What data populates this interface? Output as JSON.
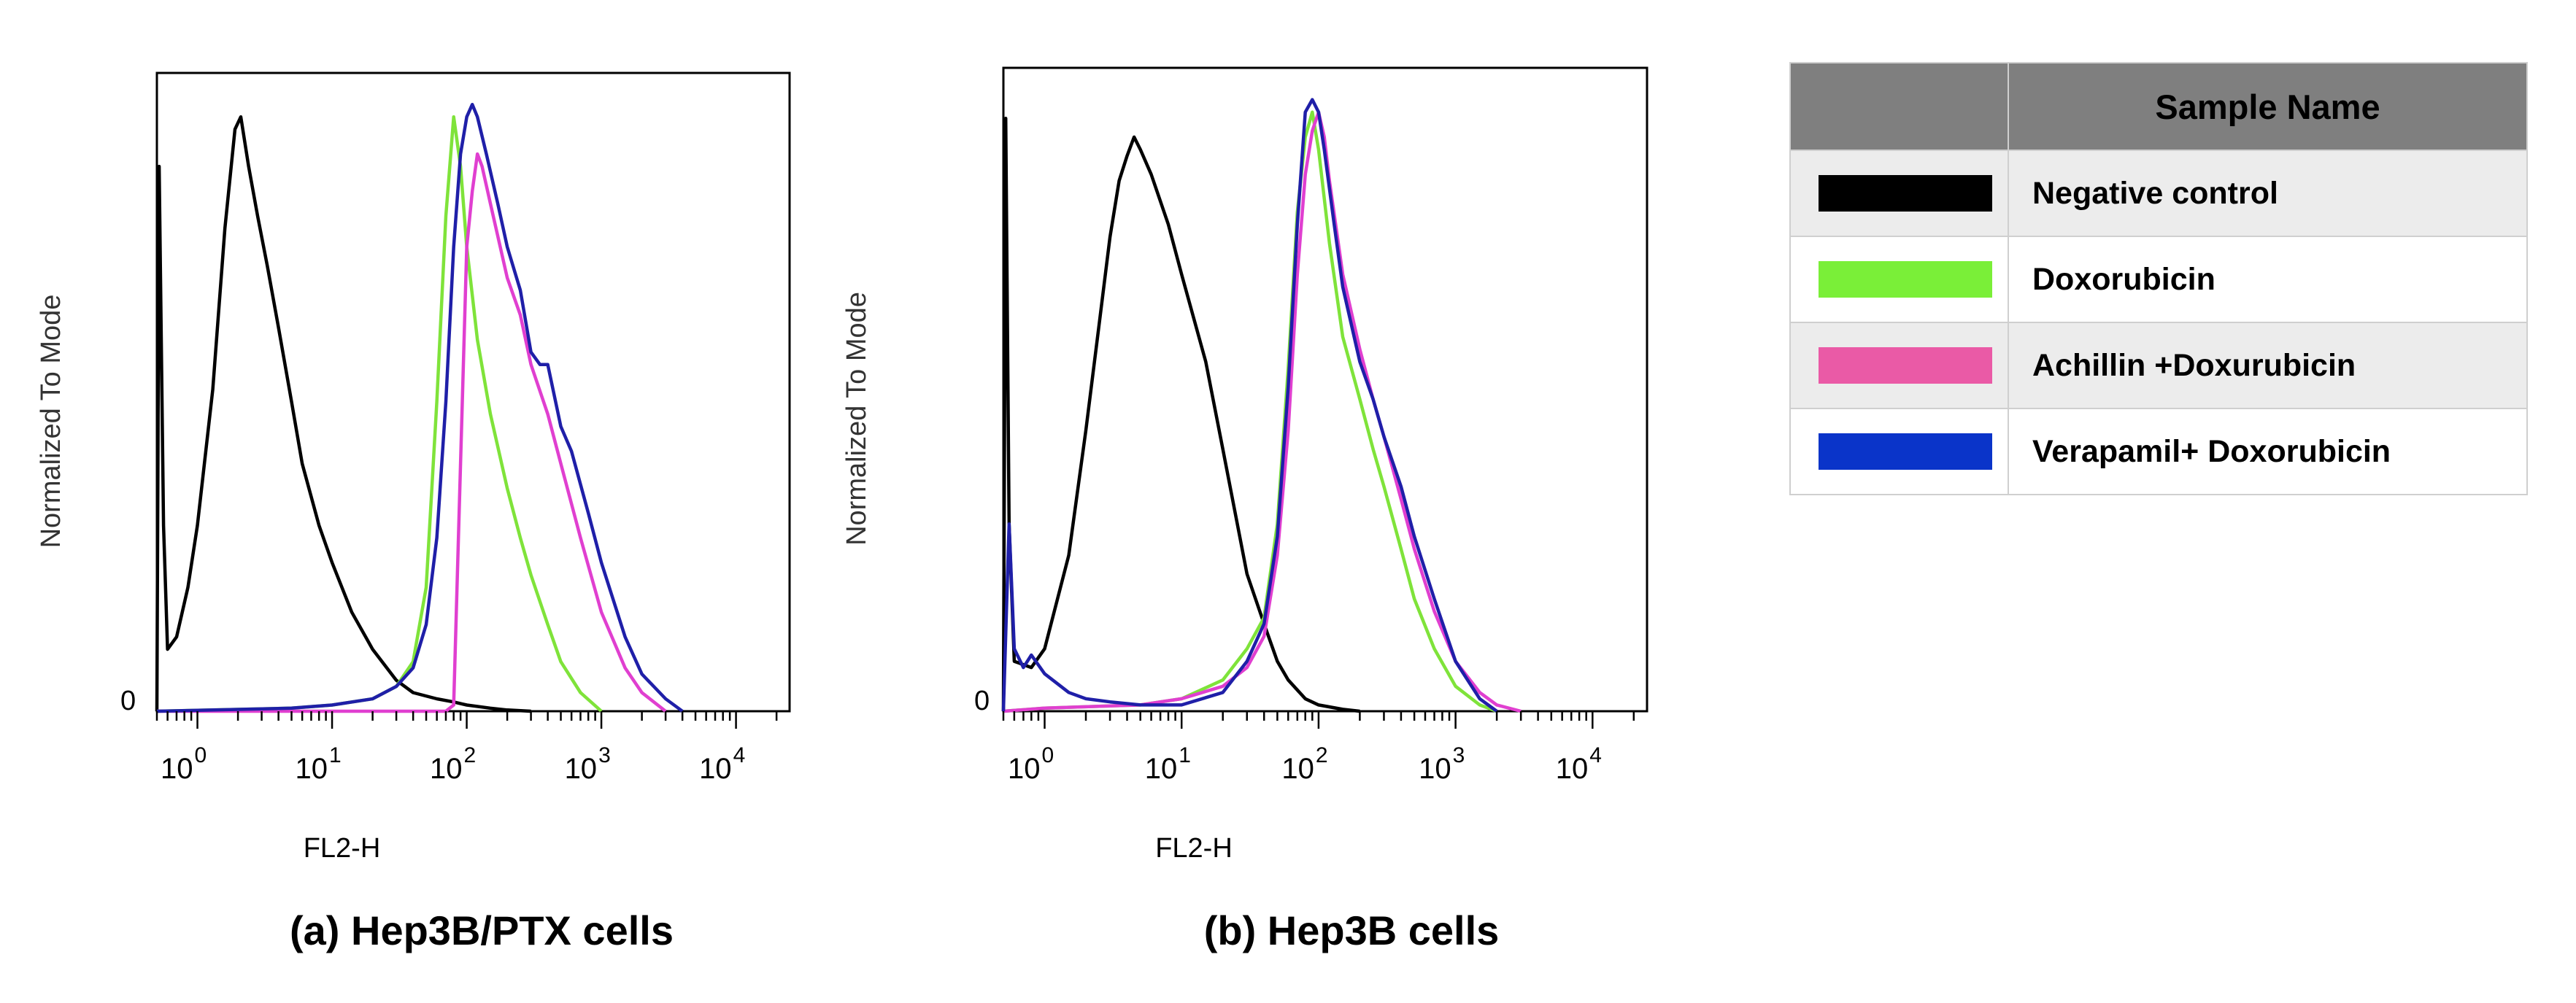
{
  "colors": {
    "negative_control": "#000000",
    "doxorubicin": "#7fe33a",
    "achillin": "#e03fd0",
    "verapamil": "#1f1fa8",
    "legend_negative": "#000000",
    "legend_doxorubicin": "#7aef38",
    "legend_achillin": "#ea5aa6",
    "legend_verapamil": "#0a34c9"
  },
  "legend": {
    "header": "Sample Name",
    "items": [
      {
        "label": "Negative control",
        "color_key": "legend_negative"
      },
      {
        "label": "Doxorubicin",
        "color_key": "legend_doxorubicin"
      },
      {
        "label": "Achillin +Doxurubicin",
        "color_key": "legend_achillin"
      },
      {
        "label": "Verapamil+ Doxorubicin",
        "color_key": "legend_verapamil"
      }
    ]
  },
  "chart_data": [
    {
      "type": "line",
      "title": "(a) Hep3B/PTX cells",
      "xlabel": "FL2-H",
      "ylabel": "Normalized To Mode",
      "xscale": "log",
      "xlim": [
        0.5,
        25000
      ],
      "ylim": [
        0,
        100
      ],
      "y_tick_label": "0",
      "x_ticks": [
        {
          "base": "10",
          "exp": "0",
          "value": 1
        },
        {
          "base": "10",
          "exp": "1",
          "value": 10
        },
        {
          "base": "10",
          "exp": "2",
          "value": 100
        },
        {
          "base": "10",
          "exp": "3",
          "value": 1000
        },
        {
          "base": "10",
          "exp": "4",
          "value": 10000
        }
      ],
      "series": [
        {
          "name": "Negative control",
          "color_key": "negative_control",
          "x": [
            0.5,
            0.52,
            0.56,
            0.6,
            0.7,
            0.85,
            1.0,
            1.3,
            1.6,
            1.9,
            2.1,
            2.4,
            2.8,
            3.3,
            4,
            5,
            6,
            8,
            10,
            14,
            20,
            30,
            40,
            60,
            80,
            100,
            150,
            200,
            300
          ],
          "y": [
            0,
            88,
            30,
            10,
            12,
            20,
            30,
            52,
            78,
            94,
            96,
            88,
            80,
            72,
            62,
            50,
            40,
            30,
            24,
            16,
            10,
            5,
            3,
            2,
            1.5,
            1,
            0.5,
            0.2,
            0
          ]
        },
        {
          "name": "Doxorubicin",
          "color_key": "doxorubicin",
          "x": [
            0.5,
            5,
            10,
            20,
            30,
            40,
            50,
            60,
            70,
            80,
            90,
            100,
            120,
            150,
            200,
            250,
            300,
            400,
            500,
            700,
            1000
          ],
          "y": [
            0,
            0.5,
            1,
            2,
            4,
            8,
            20,
            50,
            80,
            96,
            88,
            75,
            60,
            48,
            36,
            28,
            22,
            14,
            8,
            3,
            0
          ]
        },
        {
          "name": "Achillin +Doxurubicin",
          "color_key": "achillin",
          "x": [
            0.5,
            50,
            70,
            80,
            90,
            100,
            110,
            120,
            130,
            150,
            200,
            250,
            300,
            400,
            500,
            700,
            1000,
            1500,
            2000,
            3000
          ],
          "y": [
            0,
            0,
            0,
            1,
            40,
            75,
            84,
            90,
            88,
            82,
            70,
            64,
            56,
            48,
            40,
            28,
            16,
            7,
            3,
            0
          ]
        },
        {
          "name": "Verapamil+ Doxorubicin",
          "color_key": "verapamil",
          "x": [
            0.5,
            5,
            10,
            20,
            30,
            40,
            50,
            60,
            70,
            80,
            90,
            100,
            110,
            120,
            140,
            170,
            200,
            250,
            300,
            350,
            400,
            500,
            600,
            800,
            1000,
            1500,
            2000,
            3000,
            4000
          ],
          "y": [
            0,
            0.5,
            1,
            2,
            4,
            7,
            14,
            28,
            50,
            75,
            90,
            96,
            98,
            96,
            90,
            82,
            75,
            68,
            58,
            56,
            56,
            46,
            42,
            32,
            24,
            12,
            6,
            2,
            0
          ]
        }
      ]
    },
    {
      "type": "line",
      "title": "(b) Hep3B cells",
      "xlabel": "FL2-H",
      "ylabel": "Normalized To Mode",
      "xscale": "log",
      "xlim": [
        0.5,
        25000
      ],
      "ylim": [
        0,
        100
      ],
      "y_tick_label": "0",
      "x_ticks": [
        {
          "base": "10",
          "exp": "0",
          "value": 1
        },
        {
          "base": "10",
          "exp": "1",
          "value": 10
        },
        {
          "base": "10",
          "exp": "2",
          "value": 100
        },
        {
          "base": "10",
          "exp": "3",
          "value": 1000
        },
        {
          "base": "10",
          "exp": "4",
          "value": 10000
        }
      ],
      "series": [
        {
          "name": "Negative control",
          "color_key": "negative_control",
          "x": [
            0.5,
            0.52,
            0.55,
            0.6,
            0.8,
            1.0,
            1.5,
            2,
            2.5,
            3,
            3.5,
            4,
            4.5,
            5,
            6,
            8,
            10,
            15,
            20,
            30,
            40,
            50,
            60,
            80,
            100,
            150,
            200
          ],
          "y": [
            0,
            95,
            30,
            8,
            7,
            10,
            25,
            45,
            62,
            76,
            85,
            89,
            92,
            90,
            86,
            78,
            70,
            56,
            42,
            22,
            14,
            8,
            5,
            2,
            1,
            0.3,
            0
          ]
        },
        {
          "name": "Doxorubicin",
          "color_key": "doxorubicin",
          "x": [
            0.5,
            1,
            5,
            10,
            20,
            30,
            40,
            50,
            60,
            70,
            80,
            90,
            100,
            120,
            150,
            200,
            250,
            300,
            400,
            500,
            700,
            1000,
            1500,
            2000
          ],
          "y": [
            0,
            0.5,
            1,
            2,
            5,
            10,
            15,
            30,
            55,
            80,
            92,
            96,
            90,
            75,
            60,
            50,
            42,
            36,
            26,
            18,
            10,
            4,
            1,
            0
          ]
        },
        {
          "name": "Achillin +Doxurubicin",
          "color_key": "achillin",
          "x": [
            0.5,
            1,
            5,
            10,
            20,
            30,
            40,
            50,
            60,
            70,
            80,
            90,
            100,
            110,
            120,
            150,
            200,
            250,
            300,
            400,
            500,
            700,
            1000,
            1500,
            2000,
            3000
          ],
          "y": [
            0,
            0.5,
            1,
            2,
            4,
            7,
            12,
            25,
            45,
            70,
            86,
            93,
            96,
            92,
            85,
            70,
            58,
            50,
            44,
            34,
            26,
            16,
            8,
            3,
            1,
            0
          ]
        },
        {
          "name": "Verapamil+ Doxorubicin",
          "color_key": "verapamil",
          "x": [
            0.5,
            0.55,
            0.6,
            0.7,
            0.8,
            1.0,
            1.5,
            2,
            3,
            5,
            10,
            20,
            30,
            40,
            50,
            60,
            70,
            80,
            90,
            100,
            110,
            130,
            150,
            200,
            250,
            300,
            400,
            500,
            700,
            1000,
            1500,
            2000
          ],
          "y": [
            0,
            30,
            10,
            7,
            9,
            6,
            3,
            2,
            1.5,
            1,
            1,
            3,
            8,
            14,
            28,
            52,
            78,
            96,
            98,
            96,
            90,
            78,
            68,
            56,
            50,
            44,
            36,
            28,
            18,
            8,
            2,
            0
          ]
        }
      ]
    }
  ]
}
